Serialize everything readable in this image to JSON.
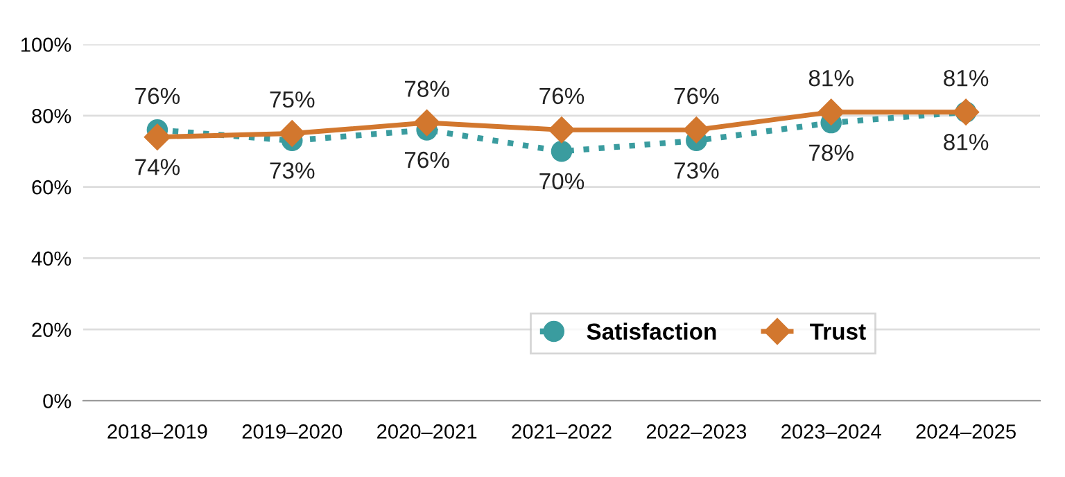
{
  "chart_data": {
    "type": "line",
    "categories": [
      "2018–2019",
      "2019–2020",
      "2020–2021",
      "2021–2022",
      "2022–2023",
      "2023–2024",
      "2024–2025"
    ],
    "series": [
      {
        "name": "Satisfaction",
        "color": "#3a9c9f",
        "marker": "circle",
        "line_style": "dotted",
        "values": [
          76,
          73,
          76,
          70,
          73,
          78,
          81
        ],
        "value_labels": [
          "76%",
          "73%",
          "76%",
          "70%",
          "73%",
          "78%",
          "81%"
        ]
      },
      {
        "name": "Trust",
        "color": "#d2772e",
        "marker": "diamond",
        "line_style": "solid",
        "values": [
          74,
          75,
          78,
          76,
          76,
          81,
          81
        ],
        "value_labels": [
          "74%",
          "75%",
          "78%",
          "76%",
          "76%",
          "81%",
          "81%"
        ]
      }
    ],
    "ylim": [
      0,
      100
    ],
    "yticks": [
      {
        "value": 0,
        "label": "0%"
      },
      {
        "value": 20,
        "label": "20%"
      },
      {
        "value": 40,
        "label": "40%"
      },
      {
        "value": 60,
        "label": "60%"
      },
      {
        "value": 80,
        "label": "80%"
      },
      {
        "value": 100,
        "label": "100%"
      }
    ],
    "grid": "y",
    "legend": "bottom right"
  }
}
